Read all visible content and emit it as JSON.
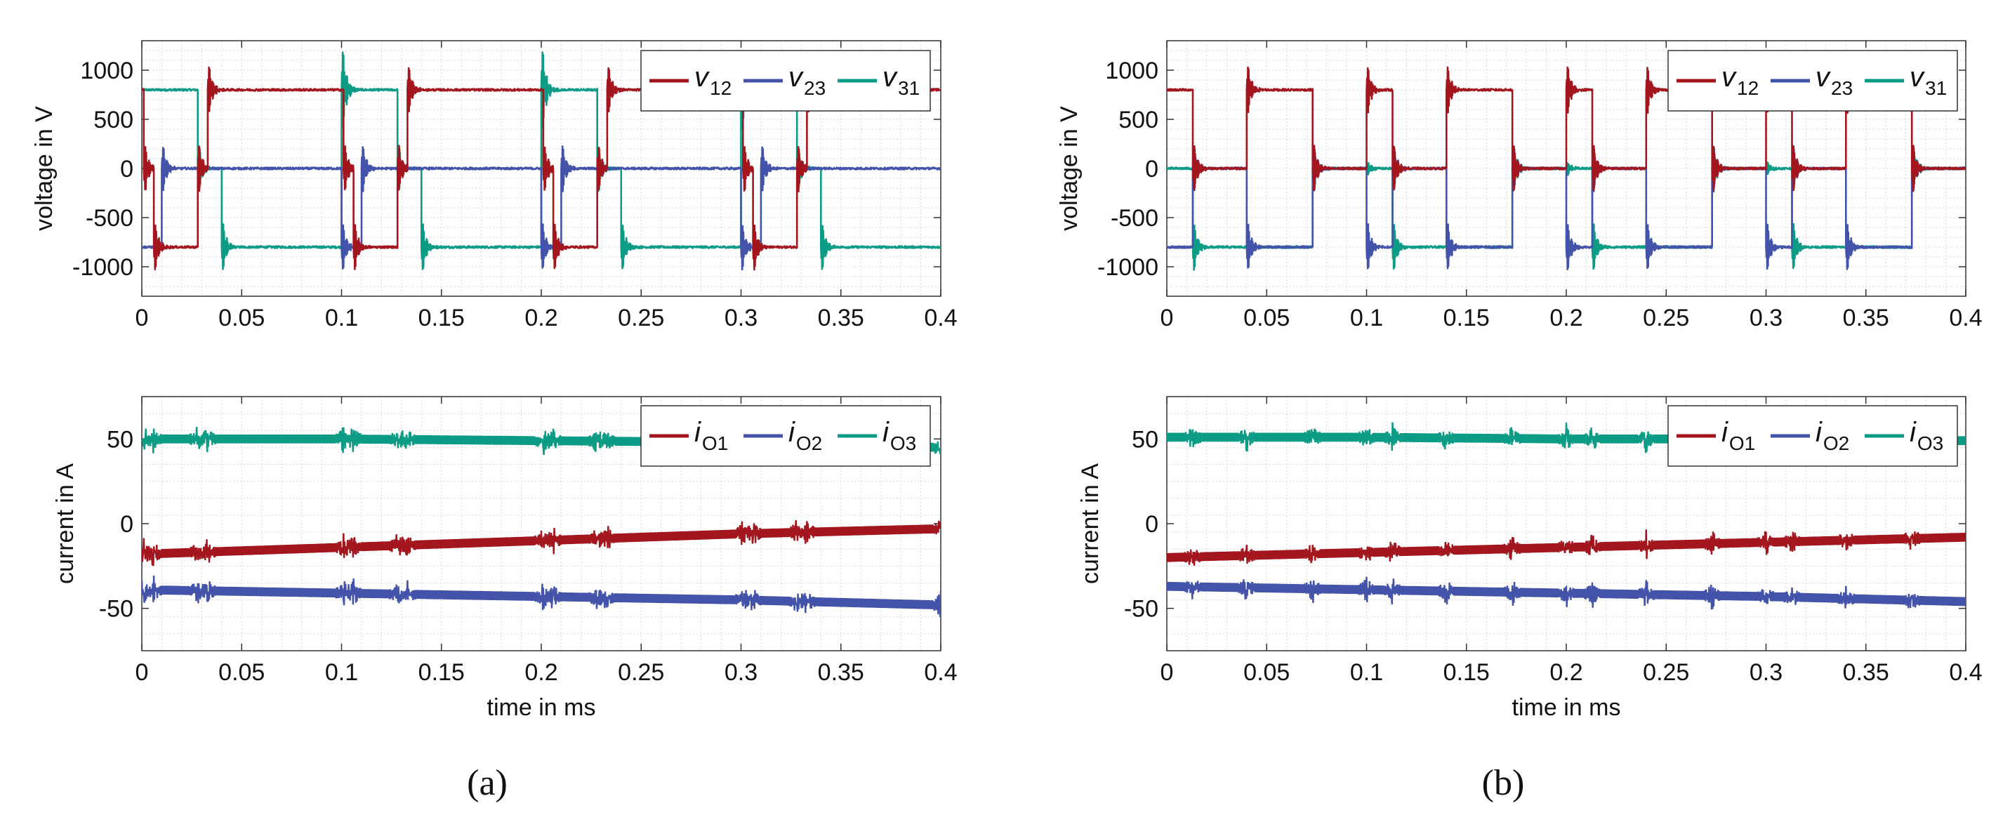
{
  "colors": {
    "red": "#A4161E",
    "blue": "#4453AA",
    "green": "#0C9B84",
    "grid": "#d9d9d9",
    "axis": "#333333",
    "legend_text": "#111111"
  },
  "panels": [
    {
      "caption": "(a)",
      "variant": "a",
      "time_label": "time in ms",
      "chart_data": [
        {
          "type": "line",
          "title": "",
          "xlabel": "",
          "ylabel": "voltage in V",
          "xlim": [
            0,
            0.4
          ],
          "ylim": [
            -1300,
            1300
          ],
          "xticks": [
            0,
            0.05,
            0.1,
            0.15,
            0.2,
            0.25,
            0.3,
            0.35,
            0.4
          ],
          "xtick_labels": [
            "0",
            "0.05",
            "0.1",
            "0.15",
            "0.2",
            "0.25",
            "0.3",
            "0.35",
            "0.4"
          ],
          "yticks": [
            -1000,
            -500,
            0,
            500,
            1000
          ],
          "ytick_labels": [
            "-1000",
            "-500",
            "0",
            "500",
            "1000"
          ],
          "grid": true,
          "legend_position": "top-right",
          "series": [
            {
              "name": "v12",
              "legend_main": "v",
              "legend_sub": "12",
              "color_key": "red",
              "levels": [
                {
                  "x": 0,
                  "y": 800
                },
                {
                  "x": 0.001,
                  "y": 0
                },
                {
                  "x": 0.006,
                  "y": -800
                },
                {
                  "x": 0.028,
                  "y": 0
                },
                {
                  "x": 0.033,
                  "y": 800
                },
                {
                  "x": 0.101,
                  "y": 0
                },
                {
                  "x": 0.106,
                  "y": -800
                },
                {
                  "x": 0.128,
                  "y": 0
                },
                {
                  "x": 0.133,
                  "y": 800
                },
                {
                  "x": 0.201,
                  "y": 0
                },
                {
                  "x": 0.206,
                  "y": -800
                },
                {
                  "x": 0.228,
                  "y": 0
                },
                {
                  "x": 0.233,
                  "y": 800
                },
                {
                  "x": 0.301,
                  "y": 0
                },
                {
                  "x": 0.306,
                  "y": -800
                },
                {
                  "x": 0.328,
                  "y": 0
                },
                {
                  "x": 0.333,
                  "y": 800
                }
              ]
            },
            {
              "name": "v23",
              "legend_main": "v",
              "legend_sub": "23",
              "color_key": "blue",
              "levels": [
                {
                  "x": 0,
                  "y": -800
                },
                {
                  "x": 0.01,
                  "y": 0
                },
                {
                  "x": 0.1,
                  "y": -800
                },
                {
                  "x": 0.11,
                  "y": 0
                },
                {
                  "x": 0.2,
                  "y": -800
                },
                {
                  "x": 0.21,
                  "y": 0
                },
                {
                  "x": 0.3,
                  "y": -800
                },
                {
                  "x": 0.31,
                  "y": 0
                }
              ]
            },
            {
              "name": "v31",
              "legend_main": "v",
              "legend_sub": "31",
              "color_key": "green",
              "levels": [
                {
                  "x": 0,
                  "y": 800
                },
                {
                  "x": 0.028,
                  "y": 0
                },
                {
                  "x": 0.04,
                  "y": -800
                },
                {
                  "x": 0.1,
                  "y": 800
                },
                {
                  "x": 0.128,
                  "y": 0
                },
                {
                  "x": 0.14,
                  "y": -800
                },
                {
                  "x": 0.2,
                  "y": 800
                },
                {
                  "x": 0.228,
                  "y": 0
                },
                {
                  "x": 0.24,
                  "y": -800
                },
                {
                  "x": 0.3,
                  "y": 800
                },
                {
                  "x": 0.328,
                  "y": 0
                },
                {
                  "x": 0.34,
                  "y": -800
                }
              ]
            }
          ]
        },
        {
          "type": "line",
          "title": "",
          "xlabel": "time in ms",
          "ylabel": "current in A",
          "xlim": [
            0,
            0.4
          ],
          "ylim": [
            -75,
            75
          ],
          "xticks": [
            0,
            0.05,
            0.1,
            0.15,
            0.2,
            0.25,
            0.3,
            0.35,
            0.4
          ],
          "xtick_labels": [
            "0",
            "0.05",
            "0.1",
            "0.15",
            "0.2",
            "0.25",
            "0.3",
            "0.35",
            "0.4"
          ],
          "yticks": [
            -50,
            0,
            50
          ],
          "ytick_labels": [
            "-50",
            "0",
            "50"
          ],
          "grid": true,
          "legend_position": "top-right",
          "series": [
            {
              "name": "iO1",
              "legend_main": "i",
              "legend_sub": "O1",
              "color_key": "red",
              "x": [
                0,
                0.1,
                0.2,
                0.3,
                0.4
              ],
              "y": [
                -18,
                -14,
                -10,
                -6,
                -3
              ]
            },
            {
              "name": "iO2",
              "legend_main": "i",
              "legend_sub": "O2",
              "color_key": "blue",
              "x": [
                0,
                0.1,
                0.2,
                0.3,
                0.4
              ],
              "y": [
                -39,
                -41,
                -43,
                -45,
                -48
              ]
            },
            {
              "name": "iO3",
              "legend_main": "i",
              "legend_sub": "O3",
              "color_key": "green",
              "x": [
                0,
                0.1,
                0.2,
                0.3,
                0.4
              ],
              "y": [
                50,
                50,
                49,
                48,
                45
              ]
            }
          ],
          "spike_times": [
            0.001,
            0.006,
            0.028,
            0.033,
            0.101,
            0.106,
            0.128,
            0.133,
            0.201,
            0.206,
            0.228,
            0.233,
            0.301,
            0.306,
            0.328,
            0.333,
            0.4
          ]
        }
      ]
    },
    {
      "caption": "(b)",
      "variant": "b",
      "time_label": "time in ms",
      "chart_data": [
        {
          "type": "line",
          "title": "",
          "xlabel": "",
          "ylabel": "voltage in V",
          "xlim": [
            0,
            0.4
          ],
          "ylim": [
            -1300,
            1300
          ],
          "xticks": [
            0,
            0.05,
            0.1,
            0.15,
            0.2,
            0.25,
            0.3,
            0.35,
            0.4
          ],
          "xtick_labels": [
            "0",
            "0.05",
            "0.1",
            "0.15",
            "0.2",
            "0.25",
            "0.3",
            "0.35",
            "0.4"
          ],
          "yticks": [
            -1000,
            -500,
            0,
            500,
            1000
          ],
          "ytick_labels": [
            "-1000",
            "-500",
            "0",
            "500",
            "1000"
          ],
          "grid": true,
          "legend_position": "top-right",
          "series": [
            {
              "name": "v12",
              "legend_main": "v",
              "legend_sub": "12",
              "color_key": "red",
              "levels": [
                {
                  "x": 0,
                  "y": 800
                },
                {
                  "x": 0.013,
                  "y": 0
                },
                {
                  "x": 0.04,
                  "y": 800
                },
                {
                  "x": 0.073,
                  "y": 0
                },
                {
                  "x": 0.1,
                  "y": 800
                },
                {
                  "x": 0.113,
                  "y": 0
                },
                {
                  "x": 0.14,
                  "y": 800
                },
                {
                  "x": 0.173,
                  "y": 0
                },
                {
                  "x": 0.2,
                  "y": 800
                },
                {
                  "x": 0.213,
                  "y": 0
                },
                {
                  "x": 0.24,
                  "y": 800
                },
                {
                  "x": 0.273,
                  "y": 0
                },
                {
                  "x": 0.3,
                  "y": 800
                },
                {
                  "x": 0.313,
                  "y": 0
                },
                {
                  "x": 0.34,
                  "y": 800
                },
                {
                  "x": 0.373,
                  "y": 0
                }
              ]
            },
            {
              "name": "v23",
              "legend_main": "v",
              "legend_sub": "23",
              "color_key": "blue",
              "levels": [
                {
                  "x": 0,
                  "y": -800
                },
                {
                  "x": 0.013,
                  "y": 0
                },
                {
                  "x": 0.04,
                  "y": -800
                },
                {
                  "x": 0.073,
                  "y": 0
                },
                {
                  "x": 0.1,
                  "y": -800
                },
                {
                  "x": 0.113,
                  "y": 0
                },
                {
                  "x": 0.14,
                  "y": -800
                },
                {
                  "x": 0.173,
                  "y": 0
                },
                {
                  "x": 0.2,
                  "y": -800
                },
                {
                  "x": 0.213,
                  "y": 0
                },
                {
                  "x": 0.24,
                  "y": -800
                },
                {
                  "x": 0.273,
                  "y": 0
                },
                {
                  "x": 0.3,
                  "y": -800
                },
                {
                  "x": 0.313,
                  "y": 0
                },
                {
                  "x": 0.34,
                  "y": -800
                },
                {
                  "x": 0.373,
                  "y": 0
                }
              ]
            },
            {
              "name": "v31",
              "legend_main": "v",
              "legend_sub": "31",
              "color_key": "green",
              "levels": [
                {
                  "x": 0,
                  "y": 0
                },
                {
                  "x": 0.013,
                  "y": -800
                },
                {
                  "x": 0.073,
                  "y": 0
                },
                {
                  "x": 0.1,
                  "y": 0
                },
                {
                  "x": 0.113,
                  "y": -800
                },
                {
                  "x": 0.173,
                  "y": 0
                },
                {
                  "x": 0.2,
                  "y": 0
                },
                {
                  "x": 0.213,
                  "y": -800
                },
                {
                  "x": 0.273,
                  "y": 0
                },
                {
                  "x": 0.3,
                  "y": 0
                },
                {
                  "x": 0.313,
                  "y": -800
                },
                {
                  "x": 0.373,
                  "y": 0
                }
              ]
            }
          ]
        },
        {
          "type": "line",
          "title": "",
          "xlabel": "time in ms",
          "ylabel": "current in A",
          "xlim": [
            0,
            0.4
          ],
          "ylim": [
            -75,
            75
          ],
          "xticks": [
            0,
            0.05,
            0.1,
            0.15,
            0.2,
            0.25,
            0.3,
            0.35,
            0.4
          ],
          "xtick_labels": [
            "0",
            "0.05",
            "0.1",
            "0.15",
            "0.2",
            "0.25",
            "0.3",
            "0.35",
            "0.4"
          ],
          "yticks": [
            -50,
            0,
            50
          ],
          "ytick_labels": [
            "-50",
            "0",
            "50"
          ],
          "grid": true,
          "legend_position": "top-right",
          "series": [
            {
              "name": "iO1",
              "legend_main": "i",
              "legend_sub": "O1",
              "color_key": "red",
              "x": [
                0,
                0.1,
                0.2,
                0.3,
                0.4
              ],
              "y": [
                -20,
                -17,
                -14,
                -11,
                -8
              ]
            },
            {
              "name": "iO2",
              "legend_main": "i",
              "legend_sub": "O2",
              "color_key": "blue",
              "x": [
                0,
                0.1,
                0.2,
                0.3,
                0.4
              ],
              "y": [
                -37,
                -39,
                -41,
                -43,
                -46
              ]
            },
            {
              "name": "iO3",
              "legend_main": "i",
              "legend_sub": "O3",
              "color_key": "green",
              "x": [
                0,
                0.1,
                0.2,
                0.3,
                0.4
              ],
              "y": [
                51,
                51,
                50,
                50,
                49
              ]
            }
          ],
          "spike_times": [
            0.013,
            0.04,
            0.073,
            0.1,
            0.113,
            0.14,
            0.173,
            0.2,
            0.213,
            0.24,
            0.273,
            0.3,
            0.313,
            0.34,
            0.373
          ]
        }
      ]
    }
  ]
}
